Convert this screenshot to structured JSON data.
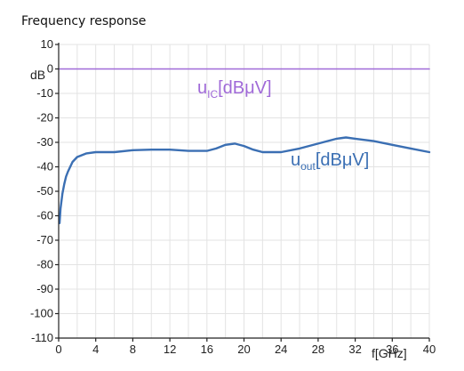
{
  "chart_data": {
    "type": "line",
    "title": "Frequency response",
    "xlabel": "f[GHz]",
    "ylabel": "dB",
    "xlim": [
      0,
      40
    ],
    "ylim": [
      -110,
      10
    ],
    "x_ticks": [
      0,
      4,
      8,
      12,
      16,
      20,
      24,
      28,
      32,
      36,
      40
    ],
    "y_ticks": [
      10,
      0,
      -10,
      -20,
      -30,
      -40,
      -50,
      -60,
      -70,
      -80,
      -90,
      -100,
      -110
    ],
    "grid": true,
    "series": [
      {
        "name": "uIC[dBµV]",
        "label_main": "u",
        "label_sub": "IC",
        "label_unit": "[dBμV]",
        "color": "#a06ad8",
        "x": [
          0,
          40
        ],
        "y": [
          0,
          0
        ]
      },
      {
        "name": "uout[dBµV]",
        "label_main": "u",
        "label_sub": "out",
        "label_unit": "[dBμV]",
        "color": "#3b6fb3",
        "x": [
          0.1,
          0.2,
          0.4,
          0.6,
          0.8,
          1,
          1.5,
          2,
          3,
          4,
          6,
          8,
          10,
          12,
          14,
          16,
          17,
          18,
          19,
          20,
          21,
          22,
          24,
          26,
          28,
          29,
          30,
          31,
          32,
          34,
          36,
          38,
          40
        ],
        "y": [
          -63,
          -57,
          -51,
          -47,
          -44,
          -42,
          -38,
          -36,
          -34.5,
          -34,
          -34,
          -33.2,
          -33,
          -33,
          -33.5,
          -33.5,
          -32.5,
          -31,
          -30.5,
          -31.5,
          -33,
          -34,
          -34,
          -32.5,
          -30.5,
          -29.5,
          -28.5,
          -28,
          -28.5,
          -29.5,
          -31,
          -32.5,
          -34
        ]
      }
    ]
  }
}
